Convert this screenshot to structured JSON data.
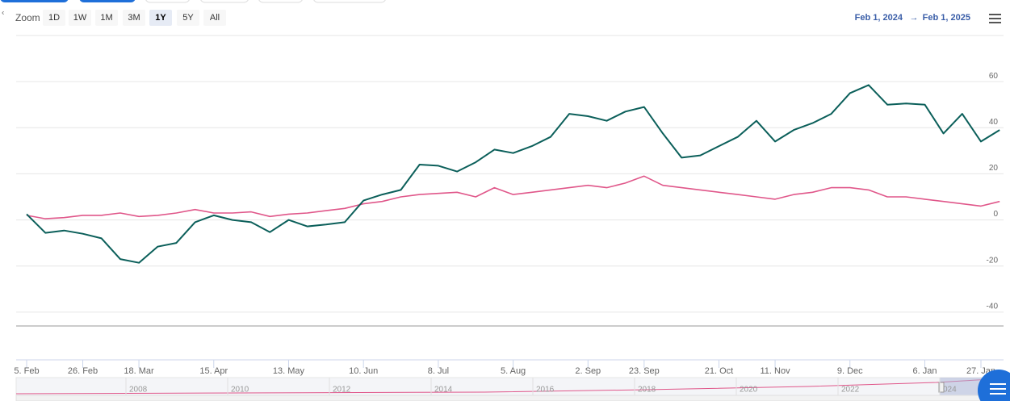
{
  "chart_data": {
    "type": "line",
    "categories": [
      "5. Feb",
      null,
      null,
      "26. Feb",
      null,
      null,
      "18. Mar",
      null,
      null,
      null,
      "15. Apr",
      null,
      null,
      null,
      "13. May",
      null,
      null,
      null,
      "10. Jun",
      null,
      null,
      null,
      "8. Jul",
      null,
      null,
      null,
      "5. Aug",
      null,
      null,
      null,
      "2. Sep",
      null,
      null,
      "23. Sep",
      null,
      null,
      null,
      "21. Oct",
      null,
      null,
      "11. Nov",
      null,
      null,
      null,
      "9. Dec",
      null,
      null,
      null,
      "6. Jan",
      null,
      null,
      "27. Jan",
      null
    ],
    "series": [
      {
        "color": "#0b5f5a",
        "values": [
          2.5,
          -5.6,
          -4.6,
          -6,
          -8,
          -17,
          -18.6,
          -11.6,
          -10,
          -1,
          2,
          0,
          -1,
          -5.3,
          0,
          -2.8,
          -2,
          -1,
          8.4,
          11,
          13,
          24,
          23.5,
          21,
          25,
          30.5,
          29,
          32,
          36,
          46,
          45,
          43,
          47,
          49,
          37.5,
          27,
          28,
          32,
          36,
          43,
          34,
          39,
          42,
          46,
          55,
          58.5,
          50,
          50.5,
          50,
          37.5,
          46,
          34,
          39
        ]
      },
      {
        "color": "#e0578a",
        "values": [
          2,
          0.5,
          1,
          2,
          2,
          3,
          1.5,
          2,
          3,
          4.5,
          3,
          3,
          3.5,
          1.5,
          2.5,
          3,
          4,
          5,
          7,
          8,
          10,
          11,
          11.5,
          12,
          10,
          14,
          11,
          12,
          13,
          14,
          15,
          14,
          16,
          19,
          15,
          14,
          13,
          12,
          11,
          10,
          9,
          11,
          12,
          14,
          14,
          13,
          10,
          10,
          9,
          8,
          7,
          6,
          8
        ]
      }
    ],
    "ylim": [
      -46,
      80
    ],
    "yticks": [
      -40,
      -20,
      0,
      20,
      40,
      60
    ],
    "grid": true
  },
  "toolbar": {
    "zoom_label": "Zoom",
    "buttons": [
      "1D",
      "1W",
      "1M",
      "3M",
      "1Y",
      "5Y",
      "All"
    ],
    "selected": "1Y",
    "range_from": "Feb 1, 2024",
    "range_arrow": "→",
    "range_to": "Feb 1, 2025"
  },
  "navigator": {
    "labels": [
      "2008",
      "2010",
      "2012",
      "2014",
      "2016",
      "2018",
      "2020",
      "2022",
      "024"
    ]
  }
}
